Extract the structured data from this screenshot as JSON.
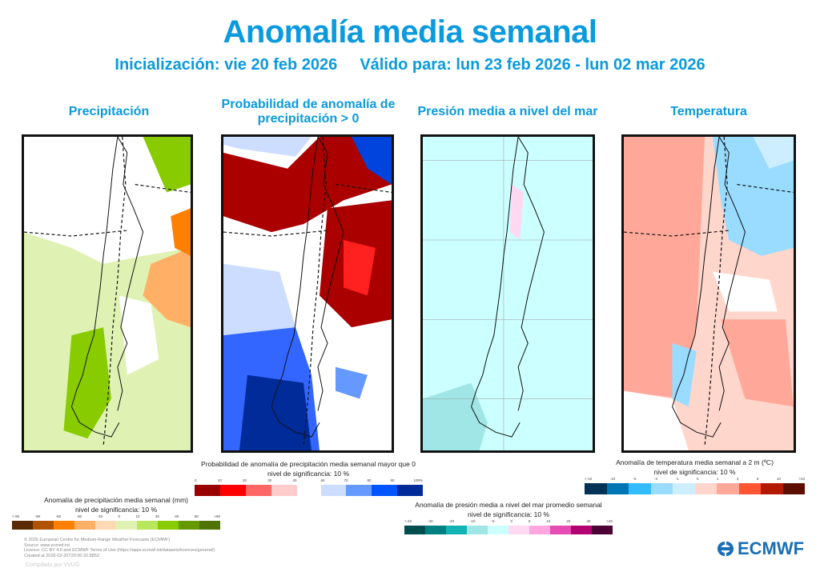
{
  "header": {
    "title": "Anomalía media semanal",
    "init": "Inicialización: vie 20 feb 2026",
    "valid": "Válido para: lun 23 feb 2026 - lun 02 mar 2026"
  },
  "panels": [
    {
      "title": "Precipitación"
    },
    {
      "title": "Probabilidad de anomalía de precipitación > 0"
    },
    {
      "title": "Presión media a nivel del mar"
    },
    {
      "title": "Temperatura"
    }
  ],
  "legends": {
    "precip": {
      "title": "Anomalía de precipitación media semanal (mm)",
      "sig": "nivel de significancia: 10 %",
      "ticks": [
        "<-90",
        "-90",
        "-60",
        "-30",
        "-10",
        "0",
        "10",
        "30",
        "60",
        "90",
        ">90"
      ],
      "colors": [
        "#5a2a00",
        "#b05300",
        "#ff8000",
        "#ffb066",
        "#ffd9b3",
        "#dff2b3",
        "#b8e65c",
        "#88cc00",
        "#669900",
        "#4d7300"
      ]
    },
    "prob": {
      "title": "Probabilidad de anomalía de precipitación media semanal mayor que 0",
      "sig": "nivel de significancia: 10 %",
      "ticks_low": [
        "0",
        "10",
        "20",
        "30",
        "40"
      ],
      "ticks_high": [
        "60",
        "70",
        "80",
        "90",
        "100%"
      ],
      "colors_low": [
        "#990000",
        "#ff0000",
        "#ff6666",
        "#ffcccc"
      ],
      "colors_high": [
        "#ccddff",
        "#6699ff",
        "#0055ff",
        "#002b99"
      ]
    },
    "pressure": {
      "title": "Anomalía de presión media a nivel del mar promedio semanal",
      "sig": "nivel de significancia: 10 %",
      "ticks": [
        "<-40",
        "-40",
        "-20",
        "-10",
        "-5",
        "0",
        "5",
        "10",
        "20",
        "40",
        ">40"
      ],
      "colors": [
        "#004d4d",
        "#008080",
        "#14b3b3",
        "#a0e6e6",
        "#ccffff",
        "#ffd9f2",
        "#ffa6e0",
        "#e64db3",
        "#b30073",
        "#4d0033"
      ]
    },
    "temp": {
      "title": "Anomalía de temperatura media semanal a 2 m (ºC)",
      "sig": "nivel de significancia: 10 %",
      "ticks": [
        "<-10",
        "-10",
        "-6",
        "-3",
        "-1",
        "0",
        "1",
        "3",
        "6",
        "10",
        ">10"
      ],
      "colors": [
        "#003355",
        "#0077b3",
        "#33bbff",
        "#99dcff",
        "#cceeff",
        "#ffd6cc",
        "#ffa899",
        "#ff5533",
        "#b31a00",
        "#5c0f00"
      ]
    }
  },
  "footer": {
    "lines": [
      "© 2026 European Centre for Medium-Range Weather Forecasts (ECMWF)",
      "Source: www.ecmwf.int",
      "Licence: CC BY 4.0 and ECMWF Terms of Use (https://apps.ecmwf.int/datasets/licences/general/)",
      "Created at 2026-02-20T20:00:32.885Z"
    ],
    "compiled": "Compilado por VVUG",
    "logo": "ECMWF"
  }
}
